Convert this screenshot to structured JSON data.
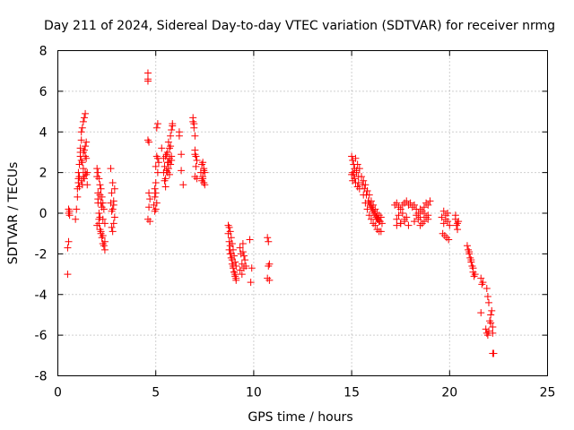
{
  "chart_data": {
    "type": "scatter",
    "title": "Day 211 of 2024, Sidereal Day-to-day VTEC variation (SDTVAR) for receiver nrmg",
    "xlabel": "GPS time / hours",
    "ylabel": "SDTVAR / TECUs",
    "xlim": [
      0,
      25
    ],
    "ylim": [
      -8,
      8
    ],
    "xticks": [
      0,
      5,
      10,
      15,
      20,
      25
    ],
    "yticks": [
      -8,
      -6,
      -4,
      -2,
      0,
      2,
      4,
      6,
      8
    ],
    "xtick_labels": [
      "0",
      "5",
      "10",
      "15",
      "20",
      "25"
    ],
    "ytick_labels": [
      "-8",
      "-6",
      "-4",
      "-2",
      "0",
      "2",
      "4",
      "6",
      "8"
    ],
    "grid": true,
    "marker": "+",
    "marker_color": "#ff0000",
    "series": [
      {
        "name": "SDTVAR",
        "x": [
          0.5,
          0.5,
          0.55,
          0.55,
          0.55,
          0.6,
          0.6,
          0.9,
          0.95,
          1.0,
          1.0,
          1.05,
          1.05,
          1.1,
          1.1,
          1.1,
          1.15,
          1.15,
          1.2,
          1.2,
          1.2,
          1.25,
          1.25,
          1.3,
          1.3,
          1.3,
          1.35,
          1.35,
          1.4,
          1.4,
          1.4,
          1.45,
          1.45,
          1.5,
          1.5,
          1.3,
          1.2,
          1.4,
          1.05,
          1.15,
          1.25,
          1.35,
          1.45,
          2.0,
          2.0,
          2.05,
          2.05,
          2.05,
          2.1,
          2.1,
          2.1,
          2.15,
          2.15,
          2.15,
          2.2,
          2.2,
          2.2,
          2.25,
          2.25,
          2.3,
          2.3,
          2.3,
          2.35,
          2.35,
          2.4,
          2.4,
          2.0,
          2.1,
          2.2,
          2.3,
          2.4,
          2.15,
          2.25,
          2.05,
          2.7,
          2.7,
          2.75,
          2.75,
          2.8,
          2.8,
          2.8,
          2.85,
          2.85,
          2.9,
          2.9,
          2.75,
          2.85,
          4.6,
          4.6,
          4.6,
          4.6,
          4.65,
          4.65,
          4.7,
          4.7,
          4.65,
          4.6,
          4.9,
          4.95,
          5.0,
          5.0,
          5.05,
          5.05,
          5.1,
          5.1,
          4.95,
          5.0,
          5.05,
          5.1,
          5.0,
          4.95,
          5.15,
          5.4,
          5.45,
          5.5,
          5.5,
          5.55,
          5.6,
          5.6,
          5.65,
          5.65,
          5.7,
          5.7,
          5.75,
          5.75,
          5.8,
          5.8,
          5.85,
          5.5,
          5.6,
          5.7,
          5.8,
          5.45,
          5.55,
          5.65,
          5.75,
          5.85,
          5.3,
          5.4,
          6.2,
          6.2,
          6.3,
          6.3,
          6.4,
          6.9,
          6.9,
          6.95,
          7.0,
          7.0,
          7.05,
          7.1,
          7.1,
          7.0,
          6.95,
          7.05,
          7.0,
          7.3,
          7.35,
          7.4,
          7.4,
          7.45,
          7.45,
          7.5,
          7.5,
          7.35,
          7.4,
          7.45,
          8.7,
          8.7,
          8.75,
          8.75,
          8.8,
          8.8,
          8.85,
          8.85,
          8.9,
          8.9,
          8.95,
          8.95,
          9.0,
          9.0,
          9.05,
          9.05,
          9.1,
          9.1,
          8.8,
          8.9,
          9.0,
          9.1,
          8.75,
          8.85,
          8.95,
          9.05,
          9.3,
          9.3,
          9.35,
          9.4,
          9.4,
          9.45,
          9.5,
          9.5,
          9.55,
          9.45,
          9.6,
          9.8,
          9.85,
          9.9,
          10.7,
          10.7,
          10.75,
          10.75,
          10.8,
          10.8,
          15.0,
          15.0,
          15.05,
          15.05,
          15.1,
          15.1,
          15.15,
          15.2,
          15.2,
          15.25,
          15.3,
          15.3,
          15.35,
          15.4,
          15.4,
          15.05,
          15.15,
          15.25,
          15.35,
          15.5,
          15.55,
          15.6,
          15.6,
          15.65,
          15.7,
          15.7,
          15.75,
          15.8,
          15.8,
          15.85,
          15.9,
          15.9,
          15.95,
          16.0,
          16.0,
          16.05,
          16.1,
          16.1,
          16.15,
          16.2,
          16.2,
          16.25,
          16.3,
          16.3,
          16.35,
          16.4,
          16.4,
          16.45,
          16.5,
          16.5,
          16.55,
          15.9,
          16.0,
          16.1,
          16.2,
          16.3,
          16.4,
          17.2,
          17.3,
          17.4,
          17.5,
          17.6,
          17.7,
          17.8,
          17.9,
          17.3,
          17.5,
          17.7,
          17.9,
          17.4,
          17.6,
          17.8,
          17.3,
          17.5,
          17.7,
          18.0,
          18.1,
          18.2,
          18.3,
          18.4,
          18.5,
          18.6,
          18.7,
          18.8,
          18.9,
          19.0,
          18.2,
          18.4,
          18.6,
          18.8,
          18.3,
          18.5,
          18.7,
          18.9,
          18.5,
          18.7,
          18.9,
          19.6,
          19.7,
          19.8,
          19.9,
          20.0,
          19.65,
          19.75,
          19.85,
          19.95,
          19.7,
          19.8,
          19.9,
          20.3,
          20.35,
          20.4,
          20.45,
          20.3,
          20.4,
          20.9,
          20.95,
          21.0,
          21.05,
          21.1,
          21.15,
          21.2,
          21.25,
          21.3,
          21.0,
          21.1,
          21.2,
          21.6,
          21.65,
          21.7,
          21.6,
          21.9,
          21.95,
          22.0,
          21.85,
          21.9,
          21.95,
          22.0,
          22.05,
          22.1,
          22.15,
          22.2,
          22.2,
          22.25,
          22.1,
          22.2
        ],
        "y": [
          -3.0,
          -1.7,
          -1.4,
          0.0,
          0.2,
          -0.1,
          0.1,
          -0.3,
          0.2,
          0.8,
          1.2,
          1.5,
          2.0,
          1.8,
          2.4,
          1.3,
          2.8,
          3.2,
          1.6,
          3.6,
          4.0,
          1.4,
          4.2,
          1.8,
          4.5,
          3.0,
          1.7,
          4.7,
          2.0,
          4.9,
          3.3,
          1.9,
          3.5,
          2.0,
          1.4,
          2.2,
          2.6,
          2.8,
          1.7,
          3.0,
          2.5,
          3.1,
          2.7,
          2.2,
          1.8,
          2.0,
          1.0,
          0.5,
          1.7,
          0.0,
          -0.5,
          1.4,
          -0.2,
          -0.8,
          1.2,
          0.5,
          -1.0,
          0.8,
          -1.2,
          0.5,
          -0.3,
          -1.5,
          0.2,
          -1.6,
          -0.5,
          -1.8,
          -0.6,
          -0.3,
          -0.9,
          -1.1,
          -1.4,
          0.9,
          0.3,
          0.7,
          2.2,
          0.5,
          -0.7,
          1.0,
          -0.9,
          0.2,
          1.5,
          -0.5,
          0.6,
          -0.2,
          1.2,
          0.1,
          0.4,
          6.9,
          6.6,
          6.5,
          3.6,
          3.5,
          1.0,
          0.7,
          -0.4,
          0.3,
          -0.3,
          0.4,
          0.8,
          1.0,
          0.2,
          2.8,
          0.5,
          2.7,
          4.4,
          0.1,
          2.3,
          4.2,
          2.0,
          1.5,
          1.2,
          2.5,
          2.0,
          2.3,
          1.7,
          2.8,
          2.1,
          2.5,
          3.0,
          2.2,
          3.5,
          1.9,
          2.7,
          2.4,
          3.8,
          2.6,
          4.1,
          4.3,
          1.3,
          2.0,
          3.2,
          2.8,
          1.6,
          2.9,
          2.5,
          3.3,
          4.4,
          3.2,
          2.7,
          4.0,
          3.8,
          2.9,
          2.1,
          1.4,
          4.7,
          4.5,
          4.2,
          3.8,
          2.9,
          2.8,
          1.7,
          2.6,
          3.1,
          4.4,
          2.3,
          1.8,
          2.0,
          1.6,
          2.5,
          1.8,
          2.2,
          1.5,
          2.0,
          1.4,
          2.4,
          1.7,
          2.1,
          -0.6,
          -1.0,
          -0.7,
          -1.4,
          -0.9,
          -1.6,
          -1.2,
          -2.0,
          -1.5,
          -2.3,
          -1.8,
          -2.6,
          -2.1,
          -2.9,
          -2.4,
          -3.1,
          -2.6,
          -3.3,
          -2.0,
          -2.5,
          -2.9,
          -3.2,
          -1.8,
          -2.2,
          -2.7,
          -3.0,
          -1.7,
          -2.8,
          -2.0,
          -2.5,
          -3.0,
          -1.5,
          -2.1,
          -2.7,
          -2.3,
          -1.9,
          -2.6,
          -1.3,
          -3.4,
          -2.7,
          -1.2,
          -3.2,
          -1.4,
          -2.6,
          -2.5,
          -3.3,
          2.8,
          1.9,
          2.6,
          1.6,
          2.4,
          1.9,
          2.2,
          1.5,
          2.7,
          2.0,
          1.3,
          2.4,
          1.8,
          1.2,
          2.2,
          2.0,
          1.7,
          2.1,
          1.5,
          1.8,
          1.4,
          1.6,
          0.9,
          1.2,
          1.4,
          0.5,
          0.9,
          1.1,
          0.2,
          0.6,
          0.9,
          -0.1,
          0.4,
          0.6,
          -0.3,
          0.2,
          0.4,
          -0.5,
          0.0,
          0.2,
          -0.6,
          -0.2,
          0.0,
          -0.8,
          -0.3,
          -0.1,
          -0.9,
          -0.4,
          -0.2,
          -0.9,
          -0.5,
          0.5,
          0.3,
          0.1,
          -0.1,
          -0.3,
          -0.4,
          0.4,
          0.5,
          0.3,
          0.2,
          0.4,
          0.5,
          0.6,
          0.4,
          -0.3,
          -0.5,
          -0.4,
          -0.6,
          -0.1,
          0.0,
          -0.2,
          -0.6,
          -0.5,
          -0.3,
          0.5,
          0.3,
          0.4,
          0.2,
          0.0,
          -0.2,
          0.1,
          0.3,
          0.5,
          0.4,
          0.6,
          -0.4,
          -0.3,
          -0.5,
          -0.2,
          -0.1,
          0.2,
          0.0,
          -0.3,
          -0.6,
          -0.4,
          -0.1,
          -0.2,
          -0.5,
          -0.3,
          0.0,
          -0.6,
          -1.0,
          -1.1,
          -1.2,
          -1.3,
          0.1,
          -0.1,
          -0.4,
          -0.3,
          -0.6,
          -0.8,
          -0.4,
          -0.1,
          -0.5,
          -1.6,
          -1.8,
          -2.0,
          -2.2,
          -2.4,
          -2.6,
          -2.9,
          -3.1,
          -3.0,
          -1.9,
          -2.3,
          -2.7,
          -3.2,
          -3.5,
          -3.4,
          -4.9,
          -3.7,
          -4.1,
          -4.4,
          -5.7,
          -5.9,
          -6.0,
          -5.8,
          -5.3,
          -5.0,
          -4.8,
          -5.6,
          -6.9,
          -6.9,
          -5.4,
          -5.9
        ]
      }
    ]
  }
}
